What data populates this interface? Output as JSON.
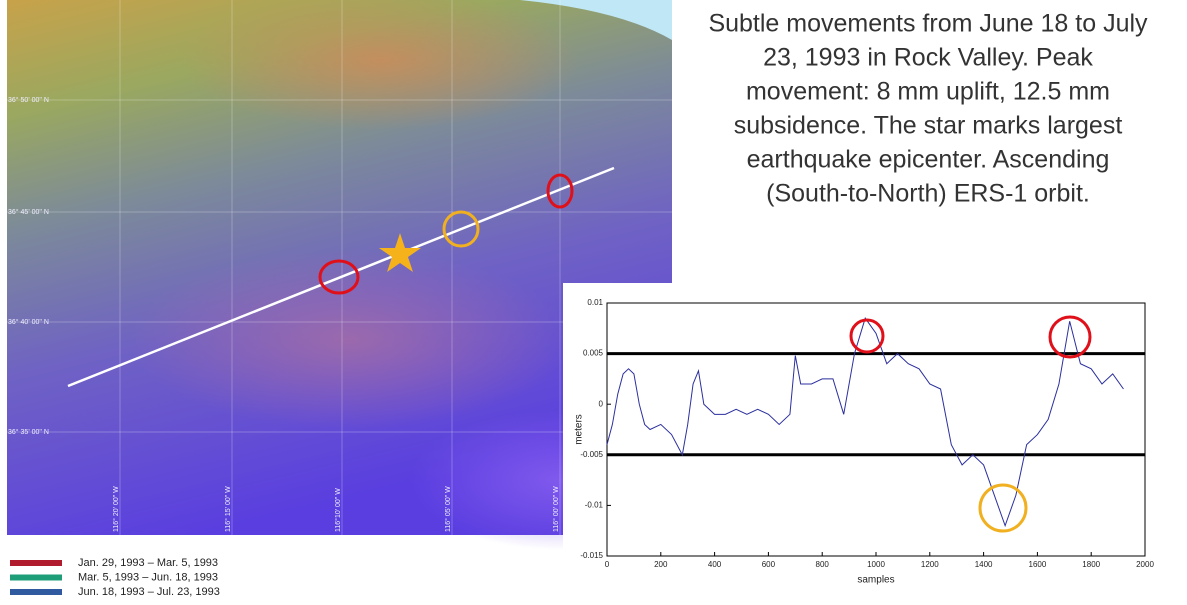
{
  "description_lines": [
    "Subtle movements from June 18 to July",
    "23, 1993 in Rock Valley. Peak",
    "movement: 8 mm uplift, 12.5 mm",
    "subsidence. The star marks largest",
    "earthquake epicenter. Ascending",
    "(South-to-North) ERS-1 orbit."
  ],
  "map": {
    "lat_labels": [
      "36° 50' 00\" N",
      "36° 45' 00\" N",
      "36° 40' 00\" N",
      "36° 35' 00\" N"
    ],
    "lon_labels": [
      "116° 20' 00\" W",
      "116° 15' 00\" W",
      "116°10' 00\" W",
      "116° 05' 00\" W",
      "116° 00' 00\" W"
    ]
  },
  "legend": [
    {
      "color": "#b01c2e",
      "label": "Jan. 29, 1993 – Mar. 5, 1993"
    },
    {
      "color": "#1e9e78",
      "label": "Mar. 5, 1993 – Jun. 18, 1993"
    },
    {
      "color": "#2f5aa0",
      "label": "Jun. 18, 1993 – Jul. 23, 1993"
    }
  ],
  "chart_data": {
    "type": "line",
    "x_label": "samples",
    "y_label": "meters",
    "xlim": [
      0,
      2000
    ],
    "xticks": [
      0,
      200,
      400,
      600,
      800,
      1000,
      1200,
      1400,
      1600,
      1800,
      2000
    ],
    "ylim": [
      -0.015,
      0.01
    ],
    "yticks": [
      -0.015,
      -0.01,
      -0.005,
      0,
      0.005,
      0.01
    ],
    "hlines": [
      0.005,
      -0.005
    ],
    "x": [
      0,
      20,
      40,
      60,
      80,
      100,
      120,
      140,
      160,
      200,
      240,
      280,
      300,
      320,
      340,
      360,
      400,
      440,
      480,
      520,
      560,
      600,
      640,
      680,
      700,
      720,
      760,
      800,
      840,
      880,
      920,
      960,
      1000,
      1040,
      1080,
      1120,
      1160,
      1200,
      1240,
      1280,
      1320,
      1360,
      1400,
      1440,
      1480,
      1520,
      1560,
      1600,
      1640,
      1680,
      1720,
      1760,
      1800,
      1840,
      1880,
      1920
    ],
    "series": [
      {
        "color": "#2b2f9e",
        "values": [
          -0.004,
          -0.002,
          0.001,
          0.003,
          0.0035,
          0.003,
          0.0,
          -0.002,
          -0.0025,
          -0.002,
          -0.003,
          -0.005,
          -0.002,
          0.002,
          0.0033,
          0.0,
          -0.001,
          -0.001,
          -0.0005,
          -0.001,
          -0.0005,
          -0.001,
          -0.002,
          -0.001,
          0.0048,
          0.002,
          0.002,
          0.0025,
          0.0025,
          -0.001,
          0.005,
          0.0085,
          0.007,
          0.004,
          0.005,
          0.004,
          0.0035,
          0.002,
          0.0015,
          -0.004,
          -0.006,
          -0.005,
          -0.006,
          -0.009,
          -0.012,
          -0.009,
          -0.004,
          -0.003,
          -0.0015,
          0.002,
          0.0082,
          0.004,
          0.0035,
          0.002,
          0.003,
          0.0015
        ]
      }
    ]
  }
}
